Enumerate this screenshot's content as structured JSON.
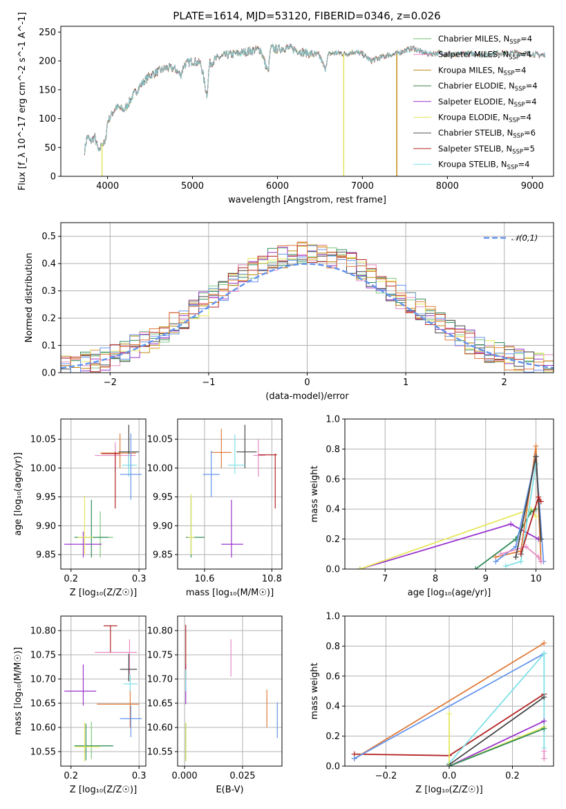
{
  "title": "PLATE=1614, MJD=53120, FIBERID=0346, z=0.026",
  "colors": [
    "#7fc97f",
    "#e78ac3",
    "#b8860b",
    "#2e8b57",
    "#9932cc",
    "#e6e65c",
    "#444444",
    "#b22222",
    "#7ee0e6"
  ],
  "legend_colors": [
    "#6dbf6d",
    "#e78ac3",
    "#c08a10",
    "#3a7d44",
    "#9932cc",
    "#e3e35c",
    "#505050",
    "#b22222",
    "#80dfe8"
  ],
  "chart_data": [
    {
      "id": "spectrum",
      "type": "line",
      "xlabel": "wavelength [Angstrom, rest frame]",
      "ylabel": "Flux [f_λ 10^-17 erg cm^-2 s^-1 A^-1]",
      "xlim": [
        3450,
        9250
      ],
      "ylim": [
        0,
        260
      ],
      "xticks": [
        "4000",
        "5000",
        "6000",
        "7000",
        "8000",
        "9000"
      ],
      "yticks": [
        "0",
        "50",
        "100",
        "150",
        "200",
        "250"
      ],
      "grid": false,
      "legend_position": "right",
      "series_labels": [
        "Chabrier MILES, N_SSP=4",
        "Salpeter MILES, N_SSP=4",
        "Kroupa MILES, N_SSP=4",
        "Chabrier ELODIE, N_SSP=4",
        "Salpeter ELODIE, N_SSP=4",
        "Kroupa ELODIE, N_SSP=4",
        "Chabrier STELIB, N_SSP=6",
        "Salpeter STELIB, N_SSP=5",
        "Kroupa STELIB, N_SSP=4"
      ],
      "profile": [
        [
          3730,
          45
        ],
        [
          3760,
          70
        ],
        [
          3800,
          60
        ],
        [
          3850,
          68
        ],
        [
          3900,
          40
        ],
        [
          3930,
          58
        ],
        [
          3970,
          55
        ],
        [
          4000,
          95
        ],
        [
          4100,
          120
        ],
        [
          4200,
          115
        ],
        [
          4300,
          140
        ],
        [
          4400,
          160
        ],
        [
          4500,
          175
        ],
        [
          4600,
          182
        ],
        [
          4700,
          188
        ],
        [
          4800,
          186
        ],
        [
          4860,
          175
        ],
        [
          4900,
          193
        ],
        [
          5000,
          200
        ],
        [
          5100,
          195
        ],
        [
          5170,
          140
        ],
        [
          5200,
          195
        ],
        [
          5300,
          205
        ],
        [
          5400,
          210
        ],
        [
          5500,
          212
        ],
        [
          5600,
          215
        ],
        [
          5700,
          218
        ],
        [
          5800,
          220
        ],
        [
          5890,
          180
        ],
        [
          5920,
          222
        ],
        [
          6000,
          220
        ],
        [
          6100,
          223
        ],
        [
          6200,
          220
        ],
        [
          6300,
          215
        ],
        [
          6400,
          212
        ],
        [
          6500,
          208
        ],
        [
          6560,
          185
        ],
        [
          6600,
          212
        ],
        [
          6700,
          214
        ],
        [
          6800,
          212
        ],
        [
          6900,
          216
        ],
        [
          7000,
          212
        ],
        [
          7100,
          200
        ],
        [
          7200,
          205
        ],
        [
          7300,
          210
        ],
        [
          7400,
          212
        ],
        [
          7500,
          218
        ],
        [
          7600,
          222
        ],
        [
          7700,
          215
        ],
        [
          7800,
          212
        ],
        [
          7900,
          214
        ],
        [
          8000,
          212
        ],
        [
          8100,
          210
        ],
        [
          8200,
          213
        ],
        [
          8300,
          212
        ],
        [
          8400,
          211
        ],
        [
          8500,
          212
        ],
        [
          8600,
          214
        ],
        [
          8700,
          213
        ],
        [
          8800,
          214
        ],
        [
          8900,
          213
        ],
        [
          9000,
          212
        ],
        [
          9100,
          210
        ],
        [
          9150,
          210
        ]
      ],
      "spikes": [
        {
          "wavelength": 3935,
          "to": 0,
          "series": 5
        },
        {
          "wavelength": 6780,
          "to": 0,
          "series": 5
        },
        {
          "wavelength": 7405,
          "to": 0,
          "series": 2
        }
      ]
    },
    {
      "id": "residuals",
      "type": "histogram",
      "xlabel": "(data-model)/error",
      "ylabel": "Normed distribution",
      "xlim": [
        -2.5,
        2.5
      ],
      "ylim": [
        0,
        0.55
      ],
      "xticks": [
        "−2",
        "−1",
        "0",
        "1",
        "2"
      ],
      "yticks": [
        "0.0",
        "0.1",
        "0.2",
        "0.3",
        "0.4",
        "0.5"
      ],
      "grid": true,
      "legend": "𝒩(0,1)",
      "legend_position": "top-right",
      "bin_width": 0.1
    },
    {
      "id": "age_vs_Z",
      "type": "scatter",
      "xlabel": "Z [log₁₀(Z/Z☉)]",
      "ylabel": "age  [log₁₀(age/yr)]",
      "xlim": [
        0.185,
        0.31
      ],
      "ylim": [
        9.825,
        10.085
      ],
      "xticks": [
        "0.2",
        "0.3"
      ],
      "yticks": [
        "9.85",
        "9.90",
        "9.95",
        "10.00",
        "10.05"
      ],
      "grid": true,
      "points": [
        {
          "x": 0.243,
          "y": 9.88,
          "xerr": [
            0.222,
            0.262
          ],
          "yerr": [
            9.845,
            9.925
          ],
          "c": 0
        },
        {
          "x": 0.265,
          "y": 10.022,
          "xerr": [
            0.235,
            0.295
          ],
          "yerr": [
            9.995,
            10.045
          ],
          "c": 1
        },
        {
          "x": 0.272,
          "y": 10.026,
          "xerr": [
            0.243,
            0.296
          ],
          "yerr": [
            10.0,
            10.06
          ],
          "c": 2
        },
        {
          "x": 0.23,
          "y": 9.88,
          "xerr": [
            0.205,
            0.255
          ],
          "yerr": [
            9.845,
            9.945
          ],
          "c": 3
        },
        {
          "x": 0.218,
          "y": 9.868,
          "xerr": [
            0.19,
            0.245
          ],
          "yerr": [
            9.845,
            9.89
          ],
          "c": 4
        },
        {
          "x": 0.22,
          "y": 9.88,
          "xerr": [
            0.21,
            0.232
          ],
          "yerr": [
            9.85,
            9.952
          ],
          "c": 5
        },
        {
          "x": 0.285,
          "y": 10.028,
          "xerr": [
            0.27,
            0.3
          ],
          "yerr": [
            10.0,
            10.075
          ],
          "c": 6
        },
        {
          "x": 0.265,
          "y": 10.025,
          "xerr": [
            0.245,
            0.272
          ],
          "yerr": [
            9.93,
            10.028
          ],
          "c": 7
        },
        {
          "x": 0.285,
          "y": 10.005,
          "xerr": [
            0.275,
            0.297
          ],
          "yerr": [
            9.985,
            10.025
          ],
          "c": 8
        },
        {
          "x": 0.288,
          "y": 9.989,
          "xerr": [
            0.272,
            0.304
          ],
          "yerr": [
            9.945,
            10.06
          ],
          "c": "blue"
        }
      ]
    },
    {
      "id": "age_vs_mass",
      "type": "scatter",
      "xlabel": "mass [log₁₀(M/M☉)]",
      "ylabel": "",
      "xlim": [
        10.52,
        10.83
      ],
      "ylim": [
        9.825,
        10.085
      ],
      "xticks": [
        "10.6",
        "10.8"
      ],
      "yticks": [
        "9.85",
        "9.90",
        "9.95",
        "10.00",
        "10.05"
      ],
      "grid": true,
      "points": [
        {
          "x": 10.56,
          "y": 9.88,
          "xerr": [
            10.545,
            10.575
          ],
          "yerr": [
            9.85,
            9.95
          ],
          "c": 0
        },
        {
          "x": 10.76,
          "y": 10.022,
          "xerr": [
            10.745,
            10.78
          ],
          "yerr": [
            9.985,
            10.05
          ],
          "c": 1
        },
        {
          "x": 10.65,
          "y": 10.027,
          "xerr": [
            10.62,
            10.68
          ],
          "yerr": [
            10.0,
            10.068
          ],
          "c": 2
        },
        {
          "x": 10.56,
          "y": 9.88,
          "xerr": [
            10.545,
            10.6
          ],
          "yerr": [
            9.845,
            9.95
          ],
          "c": 3
        },
        {
          "x": 10.68,
          "y": 9.868,
          "xerr": [
            10.65,
            10.715
          ],
          "yerr": [
            9.845,
            9.945
          ],
          "c": 4
        },
        {
          "x": 10.56,
          "y": 9.88,
          "xerr": [
            10.55,
            10.57
          ],
          "yerr": [
            9.85,
            9.955
          ],
          "c": 5
        },
        {
          "x": 10.72,
          "y": 10.028,
          "xerr": [
            10.695,
            10.755
          ],
          "yerr": [
            10.0,
            10.075
          ],
          "c": 6
        },
        {
          "x": 10.81,
          "y": 10.023,
          "xerr": [
            10.76,
            10.815
          ],
          "yerr": [
            9.93,
            10.025
          ],
          "c": 7
        },
        {
          "x": 10.69,
          "y": 10.005,
          "xerr": [
            10.67,
            10.72
          ],
          "yerr": [
            9.99,
            10.058
          ],
          "c": 8
        },
        {
          "x": 10.62,
          "y": 9.989,
          "xerr": [
            10.595,
            10.645
          ],
          "yerr": [
            9.95,
            10.03
          ],
          "c": "blue"
        }
      ]
    },
    {
      "id": "weight_vs_age",
      "type": "line",
      "xlabel": "age  [log₁₀(age/yr)]",
      "ylabel": "mass weight",
      "xlim": [
        6.2,
        10.35
      ],
      "ylim": [
        0,
        1.0
      ],
      "xticks": [
        "7",
        "8",
        "9",
        "10"
      ],
      "yticks": [
        "0.0",
        "0.2",
        "0.4",
        "0.6",
        "0.8",
        "1.0"
      ],
      "grid": true
    },
    {
      "id": "mass_vs_Z",
      "type": "scatter",
      "xlabel": "Z [log₁₀(Z/Z☉)]",
      "ylabel": "mass [log₁₀(M/M☉)]",
      "xlim": [
        0.185,
        0.31
      ],
      "ylim": [
        10.52,
        10.83
      ],
      "xticks": [
        "0.2",
        "0.3"
      ],
      "yticks": [
        "10.55",
        "10.60",
        "10.65",
        "10.70",
        "10.75",
        "10.80"
      ],
      "grid": true,
      "points": [
        {
          "x": 0.23,
          "y": 10.562,
          "xerr": [
            0.205,
            0.262
          ],
          "yerr": [
            10.535,
            10.612
          ],
          "c": 0
        },
        {
          "x": 0.286,
          "y": 10.755,
          "xerr": [
            0.235,
            0.297
          ],
          "yerr": [
            10.71,
            10.782
          ],
          "c": 1
        },
        {
          "x": 0.287,
          "y": 10.648,
          "xerr": [
            0.238,
            0.3
          ],
          "yerr": [
            10.6,
            10.682
          ],
          "c": 2
        },
        {
          "x": 0.222,
          "y": 10.562,
          "xerr": [
            0.205,
            0.262
          ],
          "yerr": [
            10.532,
            10.608
          ],
          "c": 3
        },
        {
          "x": 0.218,
          "y": 10.675,
          "xerr": [
            0.19,
            0.237
          ],
          "yerr": [
            10.645,
            10.73
          ],
          "c": 4
        },
        {
          "x": 0.22,
          "y": 10.56,
          "xerr": [
            0.205,
            0.243
          ],
          "yerr": [
            10.53,
            10.61
          ],
          "c": 5
        },
        {
          "x": 0.285,
          "y": 10.72,
          "xerr": [
            0.272,
            0.297
          ],
          "yerr": [
            10.695,
            10.752
          ],
          "c": 6
        },
        {
          "x": 0.258,
          "y": 10.81,
          "xerr": [
            0.248,
            0.268
          ],
          "yerr": [
            10.755,
            10.81
          ],
          "c": 7
        },
        {
          "x": 0.287,
          "y": 10.69,
          "xerr": [
            0.277,
            0.298
          ],
          "yerr": [
            10.675,
            10.71
          ],
          "c": 8
        },
        {
          "x": 0.288,
          "y": 10.618,
          "xerr": [
            0.272,
            0.304
          ],
          "yerr": [
            10.58,
            10.645
          ],
          "c": "blue"
        }
      ]
    },
    {
      "id": "mass_vs_EBV",
      "type": "scatter",
      "xlabel": "E(B-V)",
      "ylabel": "",
      "xlim": [
        -0.003,
        0.042
      ],
      "ylim": [
        10.52,
        10.83
      ],
      "xticks": [
        "0.000",
        "0.025"
      ],
      "yticks": [
        "10.55",
        "10.60",
        "10.65",
        "10.70",
        "10.75",
        "10.80"
      ],
      "grid": true,
      "points": [
        {
          "x": 0.0005,
          "y": 10.56,
          "yerr": [
            10.535,
            10.61
          ],
          "c": 0
        },
        {
          "x": 0.02,
          "y": 10.745,
          "yerr": [
            10.705,
            10.782
          ],
          "c": 1
        },
        {
          "x": 0.0355,
          "y": 10.64,
          "yerr": [
            10.6,
            10.678
          ],
          "c": 2
        },
        {
          "x": 0.0005,
          "y": 10.56,
          "yerr": [
            10.53,
            10.608
          ],
          "c": 3
        },
        {
          "x": 0.0005,
          "y": 10.68,
          "yerr": [
            10.648,
            10.73
          ],
          "c": 4
        },
        {
          "x": 0.0005,
          "y": 10.56,
          "yerr": [
            10.53,
            10.61
          ],
          "c": 5
        },
        {
          "x": 0.0005,
          "y": 10.76,
          "yerr": [
            10.7,
            10.812
          ],
          "c": 7
        },
        {
          "x": 0.0005,
          "y": 10.69,
          "yerr": [
            10.675,
            10.72
          ],
          "c": 8
        },
        {
          "x": 0.04,
          "y": 10.615,
          "yerr": [
            10.578,
            10.652
          ],
          "c": "blue"
        }
      ]
    },
    {
      "id": "weight_vs_Z",
      "type": "line",
      "xlabel": "Z [log₁₀(Z/Z☉)]",
      "ylabel": "mass weight",
      "xlim": [
        -0.33,
        0.33
      ],
      "ylim": [
        0,
        1.0
      ],
      "xticks": [
        "−0.2",
        "0.0",
        "0.2"
      ],
      "yticks": [
        "0.0",
        "0.2",
        "0.4",
        "0.6",
        "0.8",
        "1.0"
      ],
      "grid": true
    }
  ]
}
